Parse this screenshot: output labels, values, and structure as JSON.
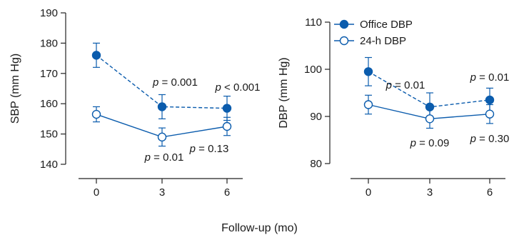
{
  "shared_xlabel": "Follow-up (mo)",
  "colors": {
    "series": "#0b5cad",
    "axis": "#222222"
  },
  "chart_data": [
    {
      "type": "line",
      "title": "",
      "xlabel": "",
      "ylabel": "SBP (mm Hg)",
      "x": [
        0,
        3,
        6
      ],
      "xticks": [
        "0",
        "3",
        "6"
      ],
      "ylim": [
        140,
        190
      ],
      "yticks": [
        "140",
        "150",
        "160",
        "170",
        "180",
        "190"
      ],
      "grid": false,
      "series": [
        {
          "id": "office",
          "values": [
            176,
            159,
            158.5
          ],
          "errors": [
            4,
            4,
            4
          ],
          "marker": "filled",
          "linestyle": "dashed"
        },
        {
          "id": "ambulatory",
          "values": [
            156.5,
            149,
            152.5
          ],
          "errors": [
            2.5,
            3,
            3
          ],
          "marker": "open",
          "linestyle": "solid"
        }
      ],
      "annotations": [
        {
          "italic": "p",
          "rest": " = 0.001",
          "x": 3,
          "y": 164
        },
        {
          "italic": "p",
          "rest": " < 0.001",
          "x": 6,
          "y": 164
        },
        {
          "italic": "p",
          "rest": " = 0.01",
          "x": 3,
          "y": 142.5
        },
        {
          "italic": "p",
          "rest": " = 0.13",
          "x": 6,
          "y": 144.5
        }
      ]
    },
    {
      "type": "line",
      "title": "",
      "xlabel": "",
      "ylabel": "DBP (mm Hg)",
      "x": [
        0,
        3,
        6
      ],
      "xticks": [
        "0",
        "3",
        "6"
      ],
      "ylim": [
        80,
        110
      ],
      "yticks": [
        "80",
        "90",
        "100",
        "110"
      ],
      "grid": false,
      "legend": {
        "position": "top-left",
        "entries": [
          {
            "series": "office",
            "label": "Office DBP"
          },
          {
            "series": "ambulatory",
            "label": "24-h DBP"
          }
        ]
      },
      "series": [
        {
          "id": "office",
          "values": [
            99.5,
            92,
            93.5
          ],
          "errors": [
            3,
            3,
            2.5
          ],
          "marker": "filled",
          "linestyle": "dashed"
        },
        {
          "id": "ambulatory",
          "values": [
            92.5,
            89.5,
            90.5
          ],
          "errors": [
            2,
            2,
            2
          ],
          "marker": "open",
          "linestyle": "solid"
        }
      ],
      "annotations": [
        {
          "italic": "p",
          "rest": " = 0.01",
          "x": 3,
          "y": 95
        },
        {
          "italic": "p",
          "rest": " = 0.01",
          "x": 6,
          "y": 98
        },
        {
          "italic": "p",
          "rest": " = 0.09",
          "x": 3,
          "y": 84.5
        },
        {
          "italic": "p",
          "rest": " = 0.30",
          "x": 6,
          "y": 85
        }
      ]
    }
  ]
}
